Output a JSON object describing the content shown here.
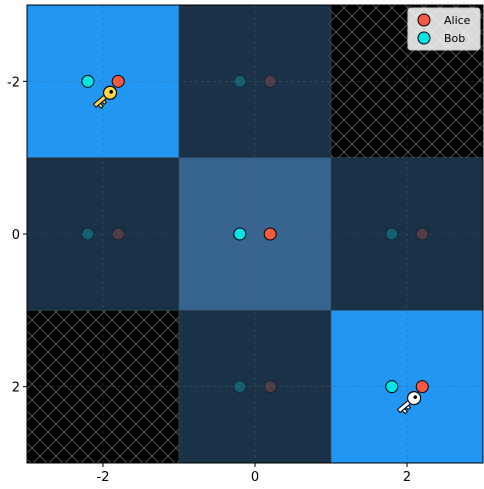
{
  "axes": {
    "xlim": [
      -3,
      3
    ],
    "ylim": [
      3,
      -3
    ],
    "x_ticks": [
      -2,
      0,
      2
    ],
    "y_ticks": [
      -2,
      0,
      2
    ],
    "x_tick_labels": [
      "-2",
      "0",
      "2"
    ],
    "y_tick_labels": [
      "-2",
      "0",
      "2"
    ],
    "grid": "dashed"
  },
  "grid": {
    "cells": [
      {
        "row": -2,
        "col": -2,
        "type": "key_room",
        "color": "#2196f3"
      },
      {
        "row": -2,
        "col": 0,
        "type": "room",
        "color": "#1a3148"
      },
      {
        "row": -2,
        "col": 2,
        "type": "wall",
        "color": "#000000"
      },
      {
        "row": 0,
        "col": -2,
        "type": "room",
        "color": "#1a3148"
      },
      {
        "row": 0,
        "col": 0,
        "type": "current",
        "color": "#37658f"
      },
      {
        "row": 0,
        "col": 2,
        "type": "room",
        "color": "#1a3148"
      },
      {
        "row": 2,
        "col": -2,
        "type": "wall",
        "color": "#000000"
      },
      {
        "row": 2,
        "col": 0,
        "type": "room",
        "color": "#1a3148"
      },
      {
        "row": 2,
        "col": 2,
        "type": "key_room",
        "color": "#2196f3"
      }
    ]
  },
  "agents": [
    {
      "name": "Alice",
      "color": "#f55a42"
    },
    {
      "name": "Bob",
      "color": "#00e5e5"
    }
  ],
  "agent_markers": [
    {
      "agent": "Bob",
      "x": -2.2,
      "y": -2,
      "faded": false
    },
    {
      "agent": "Alice",
      "x": -1.8,
      "y": -2,
      "faded": false
    },
    {
      "agent": "Bob",
      "x": -0.2,
      "y": -2,
      "faded": true
    },
    {
      "agent": "Alice",
      "x": 0.2,
      "y": -2,
      "faded": true
    },
    {
      "agent": "Bob",
      "x": -2.2,
      "y": 0,
      "faded": true
    },
    {
      "agent": "Alice",
      "x": -1.8,
      "y": 0,
      "faded": true
    },
    {
      "agent": "Bob",
      "x": -0.2,
      "y": 0,
      "faded": false
    },
    {
      "agent": "Alice",
      "x": 0.2,
      "y": 0,
      "faded": false
    },
    {
      "agent": "Bob",
      "x": 1.8,
      "y": 0,
      "faded": true
    },
    {
      "agent": "Alice",
      "x": 2.2,
      "y": 0,
      "faded": true
    },
    {
      "agent": "Bob",
      "x": -0.2,
      "y": 2,
      "faded": true
    },
    {
      "agent": "Alice",
      "x": 0.2,
      "y": 2,
      "faded": true
    },
    {
      "agent": "Bob",
      "x": 1.8,
      "y": 2,
      "faded": false
    },
    {
      "agent": "Alice",
      "x": 2.2,
      "y": 2,
      "faded": false
    }
  ],
  "keys": [
    {
      "x": -2,
      "y": -2,
      "color": "#ffd54a",
      "icon": "key-icon"
    },
    {
      "x": 2,
      "y": 2,
      "color": "#ffffff",
      "icon": "key-icon"
    }
  ],
  "legend": {
    "placement": "top-right",
    "entries": [
      {
        "label": "Alice",
        "color": "#f55a42"
      },
      {
        "label": "Bob",
        "color": "#00e5e5"
      }
    ]
  }
}
